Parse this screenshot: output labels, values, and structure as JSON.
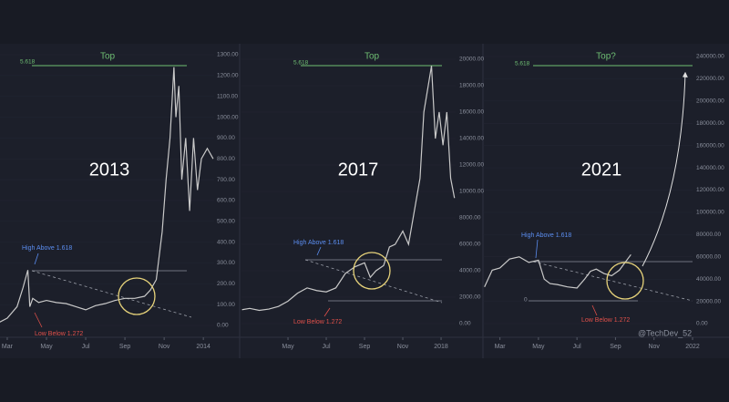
{
  "chart_data": [
    {
      "type": "line",
      "title": "2013",
      "annotations": {
        "fib_top": "5.618",
        "top": "Top",
        "high": "High Above 1.618",
        "low": "Low Below 1.272"
      },
      "x": [
        2.6,
        3.0,
        3.5,
        3.8,
        4.05,
        4.15,
        4.3,
        4.6,
        5,
        5.5,
        6,
        6.5,
        7,
        7.5,
        8,
        8.5,
        9,
        9.5,
        10,
        10.3,
        10.6,
        10.9,
        11.1,
        11.3,
        11.5,
        11.6,
        11.75,
        11.9,
        12.1,
        12.3,
        12.5,
        12.7,
        12.9,
        13.2,
        13.5
      ],
      "series": [
        {
          "color": "#c9c9c9",
          "values": [
            15,
            35,
            90,
            180,
            266,
            90,
            130,
            110,
            120,
            110,
            105,
            90,
            75,
            95,
            105,
            120,
            130,
            130,
            140,
            170,
            220,
            450,
            700,
            900,
            1240,
            1000,
            1150,
            700,
            900,
            550,
            900,
            650,
            800,
            850,
            800
          ]
        }
      ],
      "xlim": [
        2.63,
        13.55
      ],
      "xticks": [
        {
          "value": 3,
          "label": "Mar"
        },
        {
          "value": 5,
          "label": "May"
        },
        {
          "value": 7,
          "label": "Jul"
        },
        {
          "value": 9,
          "label": "Sep"
        },
        {
          "value": 11,
          "label": "Nov"
        },
        {
          "value": 13,
          "label": "2014"
        }
      ],
      "ylim": [
        0,
        1300
      ],
      "yticks": [
        {
          "value": 0,
          "label": "0.00"
        },
        {
          "value": 100,
          "label": "100.00"
        },
        {
          "value": 200,
          "label": "200.00"
        },
        {
          "value": 300,
          "label": "300.00"
        },
        {
          "value": 400,
          "label": "400.00"
        },
        {
          "value": 500,
          "label": "500.00"
        },
        {
          "value": 600,
          "label": "600.00"
        },
        {
          "value": 700,
          "label": "700.00"
        },
        {
          "value": 800,
          "label": "800.00"
        },
        {
          "value": 900,
          "label": "900.00"
        },
        {
          "value": 1000,
          "label": "1000.00"
        },
        {
          "value": 1100,
          "label": "1100.00"
        },
        {
          "value": 1200,
          "label": "1200.00"
        },
        {
          "value": 1300,
          "label": "1300.00"
        }
      ]
    },
    {
      "type": "line",
      "title": "2017",
      "annotations": {
        "fib_top": "5.618",
        "top": "Top",
        "high": "High Above 1.618",
        "low": "Low Below 1.272"
      },
      "x": [
        2.6,
        3,
        3.5,
        4,
        4.5,
        5,
        5.5,
        6,
        6.5,
        7,
        7.5,
        8,
        8.5,
        9,
        9.3,
        9.6,
        10,
        10.3,
        10.6,
        11,
        11.3,
        11.6,
        11.9,
        12.1,
        12.5,
        12.7,
        12.9,
        13.1,
        13.3,
        13.5,
        13.7
      ],
      "series": [
        {
          "color": "#c9c9c9",
          "values": [
            1050,
            1150,
            1000,
            1100,
            1300,
            1700,
            2300,
            2700,
            2500,
            2400,
            2700,
            3800,
            4300,
            4600,
            3500,
            4000,
            4400,
            5800,
            6000,
            7000,
            6000,
            8500,
            11000,
            16000,
            19500,
            14000,
            16000,
            13500,
            16000,
            11000,
            9500
          ]
        }
      ],
      "xlim": [
        2.57,
        13.76
      ],
      "xticks": [
        {
          "value": 5,
          "label": "May"
        },
        {
          "value": 7,
          "label": "Jul"
        },
        {
          "value": 9,
          "label": "Sep"
        },
        {
          "value": 11,
          "label": "Nov"
        },
        {
          "value": 13,
          "label": "2018"
        }
      ],
      "ylim": [
        0,
        20000
      ],
      "yticks": [
        {
          "value": 0,
          "label": "0.00"
        },
        {
          "value": 2000,
          "label": "2000.00"
        },
        {
          "value": 4000,
          "label": "4000.00"
        },
        {
          "value": 6000,
          "label": "6000.00"
        },
        {
          "value": 8000,
          "label": "8000.00"
        },
        {
          "value": 10000,
          "label": "10000.00"
        },
        {
          "value": 12000,
          "label": "12000.00"
        },
        {
          "value": 14000,
          "label": "14000.00"
        },
        {
          "value": 16000,
          "label": "16000.00"
        },
        {
          "value": 18000,
          "label": "18000.00"
        },
        {
          "value": 20000,
          "label": "20000.00"
        }
      ]
    },
    {
      "type": "line",
      "title": "2021",
      "annotations": {
        "fib_top": "5.618",
        "top": "Top?",
        "high": "High Above 1.618",
        "low": "Low Below 1.272",
        "zero": "0",
        "watermark": "@TechDev_52"
      },
      "x": [
        2.2,
        2.6,
        3,
        3.5,
        4,
        4.5,
        5,
        5.3,
        5.6,
        6,
        6.5,
        7,
        7.4,
        7.7,
        8,
        8.4,
        8.8,
        9.2,
        9.5,
        9.8
      ],
      "series": [
        {
          "color": "#c9c9c9",
          "values": [
            33000,
            48000,
            50000,
            58000,
            60000,
            55000,
            57000,
            40000,
            36000,
            35000,
            33000,
            32000,
            40000,
            47000,
            49000,
            45000,
            43000,
            48000,
            55000,
            62000
          ]
        }
      ],
      "xlim": [
        2.12,
        13
      ],
      "xticks": [
        {
          "value": 3,
          "label": "Mar"
        },
        {
          "value": 5,
          "label": "May"
        },
        {
          "value": 7,
          "label": "Jul"
        },
        {
          "value": 9,
          "label": "Sep"
        },
        {
          "value": 11,
          "label": "Nov"
        },
        {
          "value": 13,
          "label": "2022"
        }
      ],
      "ylim": [
        0,
        240000
      ],
      "yticks": [
        {
          "value": 0,
          "label": "0.00"
        },
        {
          "value": 20000,
          "label": "20000.00"
        },
        {
          "value": 40000,
          "label": "40000.00"
        },
        {
          "value": 60000,
          "label": "60000.00"
        },
        {
          "value": 80000,
          "label": "80000.00"
        },
        {
          "value": 100000,
          "label": "100000.00"
        },
        {
          "value": 120000,
          "label": "120000.00"
        },
        {
          "value": 140000,
          "label": "140000.00"
        },
        {
          "value": 160000,
          "label": "160000.00"
        },
        {
          "value": 180000,
          "label": "180000.00"
        },
        {
          "value": 200000,
          "label": "200000.00"
        },
        {
          "value": 220000,
          "label": "220000.00"
        },
        {
          "value": 240000,
          "label": "240000.00"
        }
      ]
    }
  ]
}
